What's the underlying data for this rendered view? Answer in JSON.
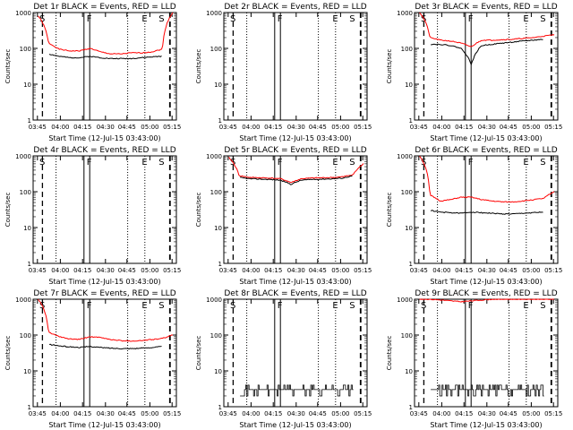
{
  "chart_data": [
    {
      "type": "line",
      "title": "Det 1r BLACK = Events, RED = LLD",
      "ylabel": "Counts/sec",
      "xlabel": "Start Time (12-Jul-15 03:43:00)",
      "x_ticks": [
        "03:45",
        "04:00",
        "04:15",
        "04:30",
        "04:45",
        "05:00",
        "05:15"
      ],
      "y_ticks": [
        "1",
        "10",
        "100",
        "1000"
      ],
      "ylim": [
        1,
        1000
      ],
      "yscale": "log",
      "markers": [
        "S",
        "F",
        "E",
        "S"
      ],
      "series": [
        {
          "color": "#ff0000",
          "values": [
            800,
            140,
            95,
            85,
            85,
            100,
            80,
            70,
            70,
            75,
            75,
            80,
            95,
            1000
          ]
        },
        {
          "color": "#000000",
          "values": [
            null,
            70,
            60,
            55,
            55,
            60,
            55,
            52,
            52,
            52,
            55,
            58,
            60,
            null
          ]
        }
      ]
    },
    {
      "type": "line",
      "title": "Det 2r BLACK = Events, RED = LLD",
      "ylabel": "Counts/sec",
      "xlabel": "Start Time (12-Jul-15 03:43:00)",
      "x_ticks": [
        "03:45",
        "04:00",
        "04:15",
        "04:30",
        "04:45",
        "05:00",
        "05:15"
      ],
      "y_ticks": [
        "1",
        "10",
        "100",
        "1000"
      ],
      "ylim": [
        1,
        1000
      ],
      "yscale": "log",
      "markers": [
        "S",
        "F",
        "E",
        "S"
      ],
      "series": []
    },
    {
      "type": "line",
      "title": "Det 3r BLACK = Events, RED = LLD",
      "ylabel": "Counts/sec",
      "xlabel": "Start Time (12-Jul-15 03:43:00)",
      "x_ticks": [
        "03:45",
        "04:00",
        "04:15",
        "04:30",
        "04:45",
        "05:00",
        "05:15"
      ],
      "y_ticks": [
        "1",
        "10",
        "100",
        "1000"
      ],
      "ylim": [
        1,
        1000
      ],
      "yscale": "log",
      "markers": [
        "S",
        "F",
        "E",
        "S"
      ],
      "series": [
        {
          "color": "#ff0000",
          "values": [
            1000,
            200,
            170,
            160,
            140,
            110,
            170,
            170,
            175,
            180,
            190,
            200,
            220,
            240
          ]
        },
        {
          "color": "#000000",
          "values": [
            null,
            130,
            130,
            120,
            100,
            35,
            120,
            130,
            140,
            150,
            160,
            170,
            180,
            null
          ]
        }
      ]
    },
    {
      "type": "line",
      "title": "Det 4r BLACK = Events, RED = LLD",
      "ylabel": "Counts/sec",
      "xlabel": "Start Time (12-Jul-15 03:43:00)",
      "x_ticks": [
        "03:45",
        "04:00",
        "04:15",
        "04:30",
        "04:45",
        "05:00",
        "05:15"
      ],
      "y_ticks": [
        "1",
        "10",
        "100",
        "1000"
      ],
      "ylim": [
        1,
        1000
      ],
      "yscale": "log",
      "markers": [
        "S",
        "F",
        "E",
        "S"
      ],
      "series": []
    },
    {
      "type": "line",
      "title": "Det 5r BLACK = Events, RED = LLD",
      "ylabel": "Counts/sec",
      "xlabel": "Start Time (12-Jul-15 03:43:00)",
      "x_ticks": [
        "03:45",
        "04:00",
        "04:15",
        "04:30",
        "04:45",
        "05:00",
        "05:15"
      ],
      "y_ticks": [
        "1",
        "10",
        "100",
        "1000"
      ],
      "ylim": [
        1,
        1000
      ],
      "yscale": "log",
      "markers": [
        "S",
        "F",
        "E",
        "S"
      ],
      "series": [
        {
          "color": "#ff0000",
          "values": [
            900,
            280,
            250,
            245,
            240,
            230,
            180,
            230,
            240,
            245,
            250,
            260,
            300,
            600
          ]
        },
        {
          "color": "#000000",
          "values": [
            null,
            250,
            230,
            225,
            220,
            210,
            160,
            210,
            220,
            225,
            230,
            240,
            280,
            null
          ]
        }
      ]
    },
    {
      "type": "line",
      "title": "Det 6r BLACK = Events, RED = LLD",
      "ylabel": "Counts/sec",
      "xlabel": "Start Time (12-Jul-15 03:43:00)",
      "x_ticks": [
        "03:45",
        "04:00",
        "04:15",
        "04:30",
        "04:45",
        "05:00",
        "05:15"
      ],
      "y_ticks": [
        "1",
        "10",
        "100",
        "1000"
      ],
      "ylim": [
        1,
        1000
      ],
      "yscale": "log",
      "markers": [
        "S",
        "F",
        "E",
        "S"
      ],
      "series": [
        {
          "color": "#ff0000",
          "values": [
            1000,
            80,
            55,
            60,
            70,
            70,
            60,
            55,
            52,
            52,
            55,
            60,
            65,
            100
          ]
        },
        {
          "color": "#000000",
          "values": [
            null,
            30,
            27,
            26,
            25,
            27,
            26,
            25,
            24,
            24,
            25,
            26,
            27,
            null
          ]
        }
      ]
    },
    {
      "type": "line",
      "title": "Det 7r BLACK = Events, RED = LLD",
      "ylabel": "Counts/sec",
      "xlabel": "Start Time (12-Jul-15 03:43:00)",
      "x_ticks": [
        "03:45",
        "04:00",
        "04:15",
        "04:30",
        "04:45",
        "05:00",
        "05:15"
      ],
      "y_ticks": [
        "1",
        "10",
        "100",
        "1000"
      ],
      "ylim": [
        1,
        1000
      ],
      "yscale": "log",
      "markers": [
        "S",
        "F",
        "E",
        "S"
      ],
      "series": [
        {
          "color": "#ff0000",
          "values": [
            1000,
            120,
            90,
            78,
            75,
            90,
            85,
            75,
            70,
            68,
            70,
            75,
            80,
            100
          ]
        },
        {
          "color": "#000000",
          "values": [
            null,
            55,
            50,
            47,
            45,
            48,
            45,
            43,
            42,
            42,
            43,
            45,
            48,
            null
          ]
        }
      ]
    },
    {
      "type": "line",
      "title": "Det 8r BLACK = Events, RED = LLD",
      "ylabel": "Counts/sec",
      "xlabel": "Start Time (12-Jul-15 03:43:00)",
      "x_ticks": [
        "03:45",
        "04:00",
        "04:15",
        "04:30",
        "04:45",
        "05:00",
        "05:15"
      ],
      "y_ticks": [
        "1",
        "10",
        "100",
        "1000"
      ],
      "ylim": [
        1,
        1000
      ],
      "yscale": "log",
      "markers": [
        "S",
        "F",
        "E",
        "S"
      ],
      "series": [
        {
          "color": "#000000",
          "values": [
            null,
            3,
            3,
            2,
            3,
            4,
            3,
            4,
            3,
            3,
            2,
            3,
            3,
            null
          ]
        }
      ]
    },
    {
      "type": "line",
      "title": "Det 9r BLACK = Events, RED = LLD",
      "ylabel": "Counts/sec",
      "xlabel": "Start Time (12-Jul-15 03:43:00)",
      "x_ticks": [
        "03:45",
        "04:00",
        "04:15",
        "04:30",
        "04:45",
        "05:00",
        "05:15"
      ],
      "y_ticks": [
        "1",
        "10",
        "100",
        "1000"
      ],
      "ylim": [
        1,
        1000
      ],
      "yscale": "log",
      "markers": [
        "S",
        "F",
        "E",
        "S"
      ],
      "series": [
        {
          "color": "#ff0000",
          "values": [
            1000,
            1000,
            950,
            900,
            850,
            900,
            950,
            1000,
            1000,
            1000,
            1000,
            1000,
            1000,
            1000
          ]
        },
        {
          "color": "#000000",
          "values": [
            null,
            3,
            3,
            2,
            3,
            3,
            2,
            3,
            3,
            2,
            3,
            2,
            3,
            null
          ]
        }
      ]
    }
  ]
}
